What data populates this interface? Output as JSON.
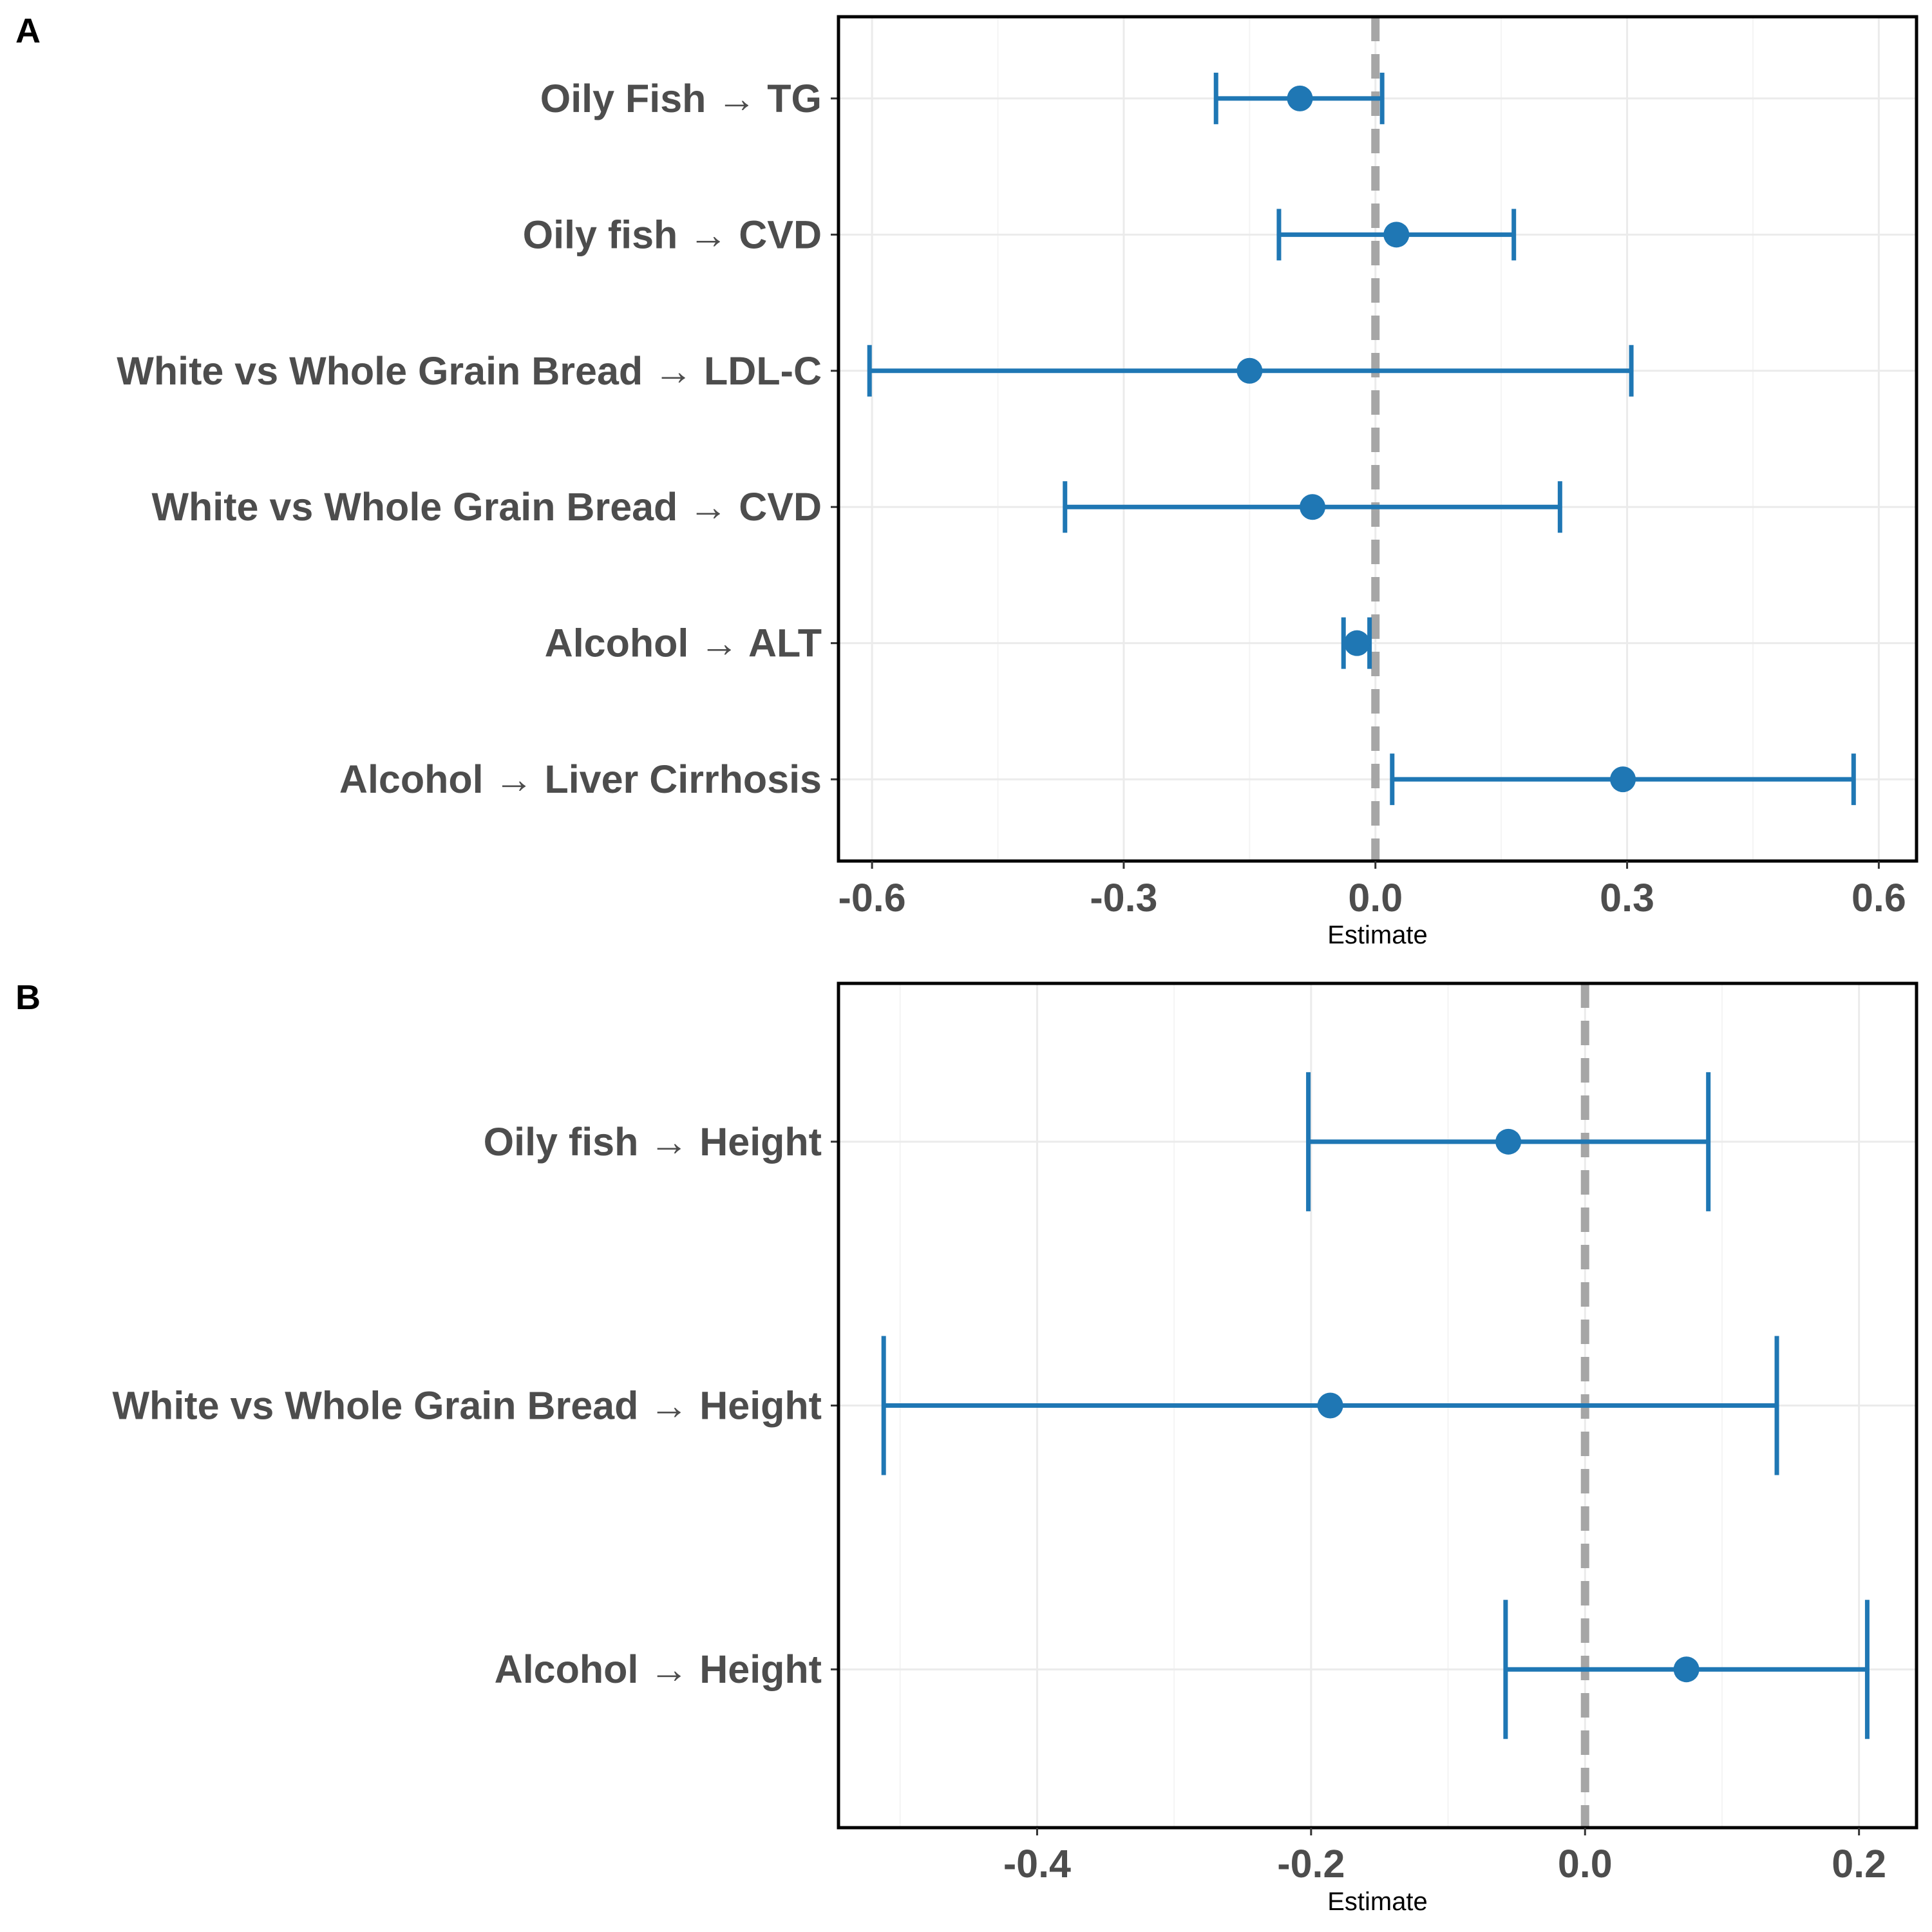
{
  "colors": {
    "point": "#1f77b4",
    "zero_line": "#a6a6a6",
    "grid_major": "#ebebeb",
    "grid_minor": "#f4f4f4",
    "frame": "#000000",
    "label": "#4d4d4d"
  },
  "chart_data": [
    {
      "panel": "A",
      "type": "forest",
      "xlabel": "Estimate",
      "xlim": [
        -0.64,
        0.645
      ],
      "xticks": [
        -0.6,
        -0.3,
        0.0,
        0.3,
        0.6
      ],
      "xtick_labels": [
        "-0.6",
        "-0.3",
        "0.0",
        "0.3",
        "0.6"
      ],
      "reference_line": 0.0,
      "grid": true,
      "rows": [
        {
          "label": "Oily Fish → TG",
          "estimate": -0.09,
          "lower": -0.19,
          "upper": 0.008
        },
        {
          "label": "Oily fish → CVD",
          "estimate": 0.025,
          "lower": -0.115,
          "upper": 0.165
        },
        {
          "label": "White vs Whole Grain Bread → LDL-C",
          "estimate": -0.15,
          "lower": -0.603,
          "upper": 0.305
        },
        {
          "label": "White vs Whole Grain Bread → CVD",
          "estimate": -0.075,
          "lower": -0.37,
          "upper": 0.22
        },
        {
          "label": "Alcohol → ALT",
          "estimate": -0.022,
          "lower": -0.038,
          "upper": -0.007
        },
        {
          "label": "Alcohol → Liver Cirrhosis",
          "estimate": 0.295,
          "lower": 0.02,
          "upper": 0.57
        }
      ]
    },
    {
      "panel": "B",
      "type": "forest",
      "xlabel": "Estimate",
      "xlim": [
        -0.545,
        0.242
      ],
      "xticks": [
        -0.4,
        -0.2,
        0.0,
        0.2
      ],
      "xtick_labels": [
        "-0.4",
        "-0.2",
        "0.0",
        "0.2"
      ],
      "reference_line": 0.0,
      "grid": true,
      "rows": [
        {
          "label": "Oily fish → Height",
          "estimate": -0.056,
          "lower": -0.202,
          "upper": 0.09
        },
        {
          "label": "White vs Whole Grain Bread → Height",
          "estimate": -0.186,
          "lower": -0.512,
          "upper": 0.14
        },
        {
          "label": "Alcohol → Height",
          "estimate": 0.074,
          "lower": -0.058,
          "upper": 0.206
        }
      ]
    }
  ]
}
